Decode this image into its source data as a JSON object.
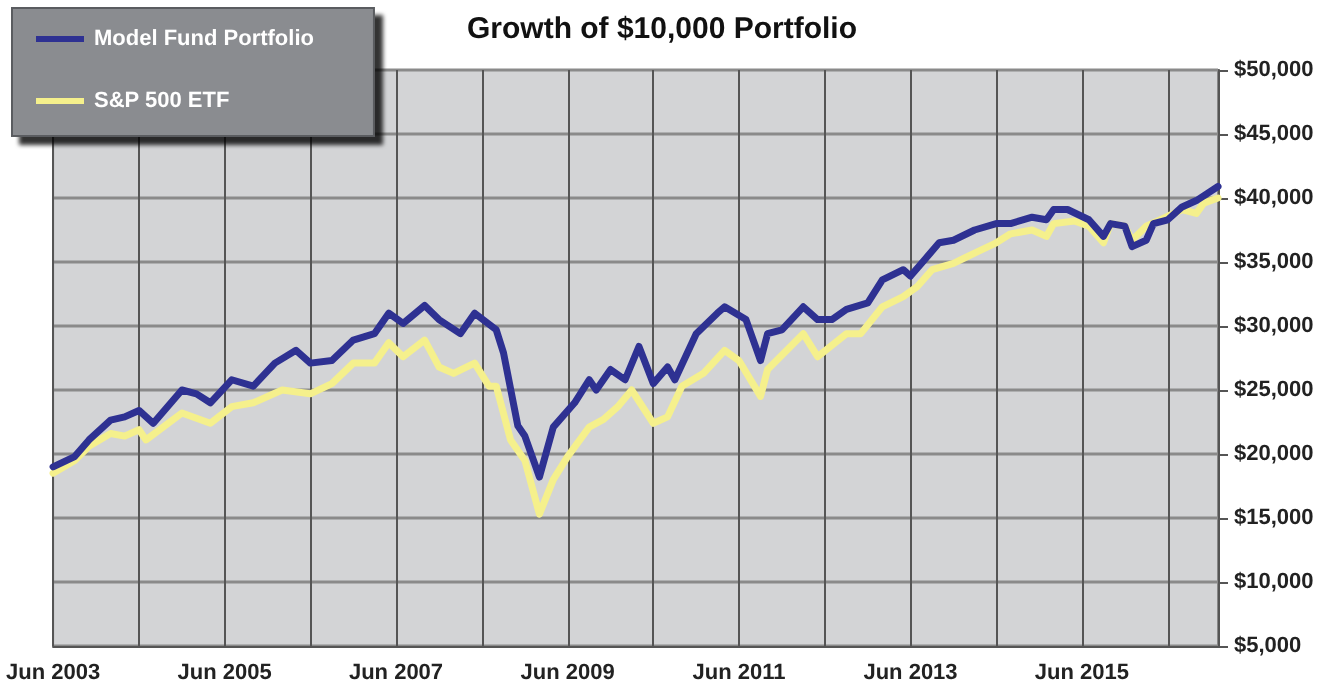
{
  "chart_data": {
    "type": "line",
    "title": "Growth of $10,000 Portfolio",
    "xlim": [
      "2003-06",
      "2017-01"
    ],
    "xticks": [
      {
        "value": "2003-06",
        "label": "Jun 2003"
      },
      {
        "value": "2004-06",
        "label": null
      },
      {
        "value": "2005-06",
        "label": "Jun 2005"
      },
      {
        "value": "2006-06",
        "label": null
      },
      {
        "value": "2007-06",
        "label": "Jun 2007"
      },
      {
        "value": "2008-06",
        "label": null
      },
      {
        "value": "2009-06",
        "label": "Jun 2009"
      },
      {
        "value": "2010-06",
        "label": null
      },
      {
        "value": "2011-06",
        "label": "Jun 2011"
      },
      {
        "value": "2012-06",
        "label": null
      },
      {
        "value": "2013-06",
        "label": "Jun 2013"
      },
      {
        "value": "2014-06",
        "label": null
      },
      {
        "value": "2015-06",
        "label": "Jun 2015"
      },
      {
        "value": "2016-06",
        "label": null
      }
    ],
    "ylim": [
      5000,
      50000
    ],
    "yticks": [
      {
        "value": 5000,
        "label": "$5,000"
      },
      {
        "value": 10000,
        "label": "$10,000"
      },
      {
        "value": 15000,
        "label": "$15,000"
      },
      {
        "value": 20000,
        "label": "$20,000"
      },
      {
        "value": 25000,
        "label": "$25,000"
      },
      {
        "value": 30000,
        "label": "$30,000"
      },
      {
        "value": 35000,
        "label": "$35,000"
      },
      {
        "value": 40000,
        "label": "$40,000"
      },
      {
        "value": 45000,
        "label": "$45,000"
      },
      {
        "value": 50000,
        "label": "$50,000"
      }
    ],
    "grid": true,
    "legend": "top left",
    "marker": "none",
    "line_style": "solid",
    "series": [
      {
        "name": "Model Fund Portfolio",
        "color": "#2e3192",
        "x": [
          "2003-06",
          "2003-09",
          "2003-11",
          "2004-02",
          "2004-04",
          "2004-06",
          "2004-08",
          "2004-12",
          "2005-02",
          "2005-04",
          "2005-07",
          "2005-10",
          "2006-01",
          "2006-04",
          "2006-06",
          "2006-09",
          "2006-12",
          "2007-03",
          "2007-05",
          "2007-07",
          "2007-10",
          "2007-12",
          "2008-03",
          "2008-05",
          "2008-08",
          "2008-09",
          "2008-11",
          "2008-12",
          "2009-02",
          "2009-04",
          "2009-07",
          "2009-09",
          "2009-10",
          "2009-12",
          "2010-02",
          "2010-04",
          "2010-06",
          "2010-08",
          "2010-09",
          "2010-12",
          "2011-03",
          "2011-04",
          "2011-07",
          "2011-09",
          "2011-10",
          "2011-12",
          "2012-03",
          "2012-05",
          "2012-07",
          "2012-09",
          "2012-12",
          "2013-02",
          "2013-05",
          "2013-06",
          "2013-08",
          "2013-10",
          "2013-12",
          "2014-03",
          "2014-06",
          "2014-08",
          "2014-11",
          "2015-01",
          "2015-02",
          "2015-04",
          "2015-07",
          "2015-09",
          "2015-10",
          "2015-12",
          "2016-01",
          "2016-03",
          "2016-04",
          "2016-06",
          "2016-08",
          "2016-10",
          "2017-01"
        ],
        "values": [
          19000,
          19800,
          21100,
          22650,
          22900,
          23400,
          22400,
          25000,
          24700,
          24000,
          25800,
          25300,
          27100,
          28100,
          27100,
          27300,
          28900,
          29400,
          31000,
          30200,
          31600,
          30500,
          29400,
          31000,
          29700,
          27900,
          22200,
          21400,
          18200,
          22100,
          24000,
          25800,
          25000,
          26600,
          25800,
          28400,
          25500,
          26800,
          25800,
          29400,
          31000,
          31500,
          30500,
          27300,
          29400,
          29700,
          31500,
          30500,
          30500,
          31300,
          31800,
          33600,
          34400,
          33900,
          35200,
          36500,
          36700,
          37500,
          38000,
          38000,
          38500,
          38300,
          39100,
          39100,
          38300,
          37000,
          38000,
          37800,
          36200,
          36700,
          38000,
          38300,
          39300,
          39800,
          40900
        ]
      },
      {
        "name": "S&P 500 ETF",
        "color": "#f5f08c",
        "x": [
          "2003-06",
          "2003-09",
          "2003-11",
          "2004-02",
          "2004-04",
          "2004-06",
          "2004-07",
          "2004-12",
          "2005-04",
          "2005-07",
          "2005-10",
          "2006-02",
          "2006-06",
          "2006-09",
          "2006-12",
          "2007-03",
          "2007-05",
          "2007-07",
          "2007-10",
          "2007-12",
          "2008-02",
          "2008-05",
          "2008-07",
          "2008-08",
          "2008-10",
          "2008-12",
          "2009-02",
          "2009-04",
          "2009-06",
          "2009-09",
          "2009-11",
          "2010-01",
          "2010-03",
          "2010-06",
          "2010-08",
          "2010-10",
          "2011-01",
          "2011-04",
          "2011-06",
          "2011-09",
          "2011-10",
          "2012-03",
          "2012-05",
          "2012-09",
          "2012-11",
          "2013-02",
          "2013-05",
          "2013-07",
          "2013-09",
          "2013-12",
          "2014-03",
          "2014-06",
          "2014-08",
          "2014-11",
          "2015-01",
          "2015-02",
          "2015-05",
          "2015-07",
          "2015-09",
          "2015-10",
          "2015-12",
          "2016-01",
          "2016-03",
          "2016-05",
          "2016-08",
          "2016-10",
          "2016-11",
          "2017-01"
        ],
        "values": [
          18500,
          19500,
          20600,
          21600,
          21400,
          21900,
          21100,
          23200,
          22400,
          23700,
          24000,
          25000,
          24700,
          25500,
          27100,
          27100,
          28700,
          27600,
          28900,
          26800,
          26300,
          27100,
          25300,
          25300,
          21100,
          19500,
          15300,
          18000,
          19800,
          22100,
          22700,
          23700,
          25000,
          22400,
          22900,
          25300,
          26300,
          28100,
          27300,
          24500,
          26600,
          29400,
          27600,
          29400,
          29400,
          31500,
          32300,
          33100,
          34400,
          34900,
          35700,
          36500,
          37200,
          37500,
          37000,
          38000,
          38200,
          37800,
          36500,
          38000,
          37800,
          36700,
          37800,
          38300,
          39100,
          38800,
          39600,
          40000
        ]
      }
    ]
  }
}
